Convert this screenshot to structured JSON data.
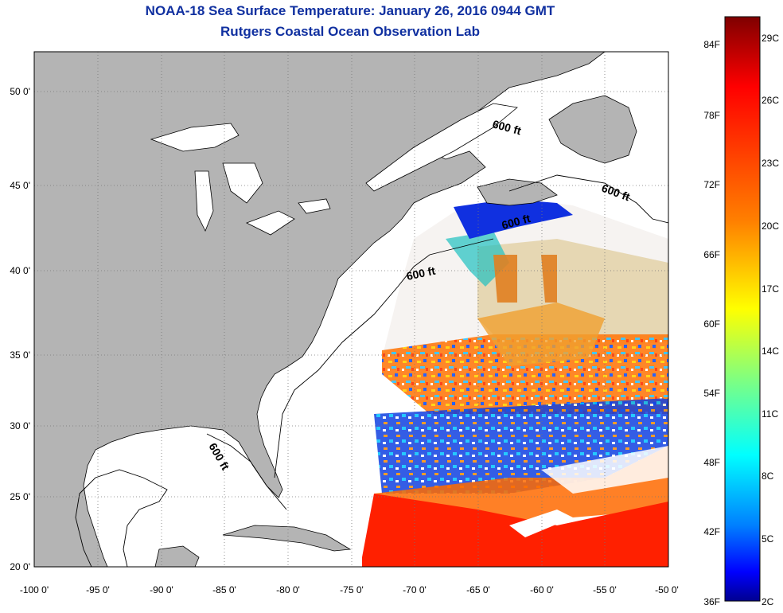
{
  "header": {
    "title": "NOAA-18 Sea Surface Temperature:  January 26, 2016 0944 GMT",
    "subtitle": "Rutgers Coastal Ocean Observation Lab"
  },
  "map": {
    "lon_range": [
      -100,
      -50
    ],
    "lat_range": [
      20,
      52.5
    ],
    "lon_ticks": [
      "-100 0'",
      "-95 0'",
      "-90 0'",
      "-85 0'",
      "-80 0'",
      "-75 0'",
      "-70 0'",
      "-65 0'",
      "-60 0'",
      "-55 0'",
      "-50 0'"
    ],
    "lat_ticks": [
      "20 0'",
      "25 0'",
      "30 0'",
      "35 0'",
      "40 0'",
      "45 0'",
      "50 0'"
    ],
    "isobath_labels": [
      "600 ft",
      "600 ft",
      "600 ft",
      "600 ft",
      "600 ft"
    ],
    "land_color": "#b4b4b4",
    "grid": true
  },
  "colorbar": {
    "fahrenheit_labels": [
      "84F",
      "78F",
      "72F",
      "66F",
      "60F",
      "54F",
      "48F",
      "42F",
      "36F"
    ],
    "celsius_labels": [
      "29C",
      "26C",
      "23C",
      "20C",
      "17C",
      "14C",
      "11C",
      "8C",
      "5C",
      "2C"
    ],
    "colors": [
      "#7f0000",
      "#ff0000",
      "#ff8000",
      "#ffff00",
      "#80ff80",
      "#00ffff",
      "#0080ff",
      "#0000ff",
      "#00008f"
    ]
  }
}
